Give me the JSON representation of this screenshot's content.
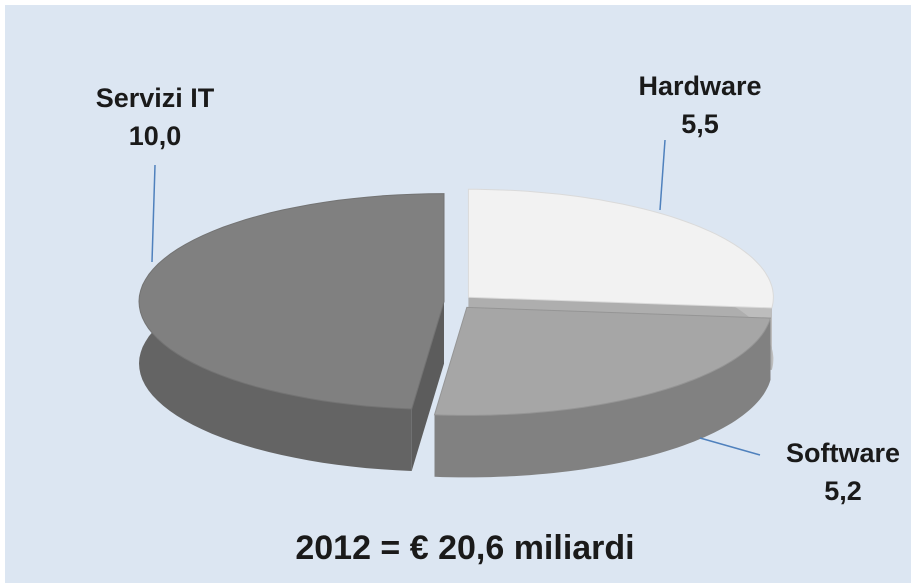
{
  "chart_data": {
    "type": "pie3d",
    "categories": [
      "Hardware",
      "Software",
      "Servizi IT"
    ],
    "values": [
      5.5,
      5.2,
      10.0
    ],
    "value_labels": [
      "5,5",
      "5,2",
      "10,0"
    ],
    "colors": [
      "#f2f2f2",
      "#a6a6a6",
      "#808080"
    ],
    "title": "2012 = € 20,6 miliardi"
  }
}
